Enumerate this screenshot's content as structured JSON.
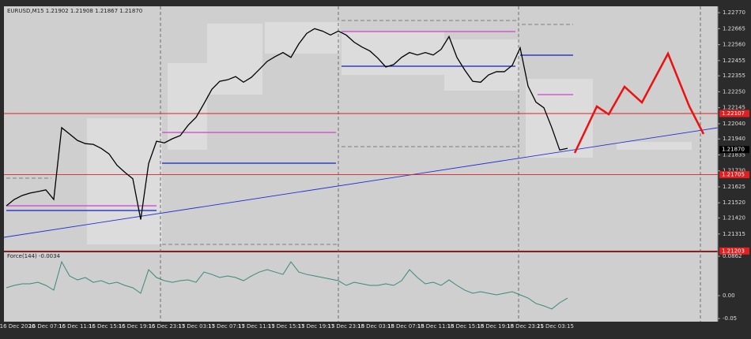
{
  "chart_data": [
    {
      "type": "line",
      "title": "EURUSD,M15  1.21902 1.21908 1.21867 1.21870",
      "color": "#000000",
      "values": [
        1.215,
        1.21542,
        1.21568,
        1.21584,
        1.21594,
        1.21605,
        1.21542,
        1.22014,
        1.21972,
        1.2193,
        1.21909,
        1.21904,
        1.21878,
        1.21841,
        1.21767,
        1.2172,
        1.21678,
        1.2141,
        1.21778,
        1.21925,
        1.21914,
        1.21941,
        1.21962,
        1.2203,
        1.22082,
        1.22172,
        1.22266,
        1.22319,
        1.22329,
        1.2235,
        1.22313,
        1.22345,
        1.22397,
        1.2245,
        1.22481,
        1.22508,
        1.22476,
        1.22565,
        1.22634,
        1.22665,
        1.22649,
        1.22623,
        1.22649,
        1.22623,
        1.22576,
        1.22544,
        1.22518,
        1.22471,
        1.22413,
        1.22429,
        1.22476,
        1.22508,
        1.22492,
        1.22508,
        1.22492,
        1.22529,
        1.22613,
        1.22476,
        1.22392,
        1.22319,
        1.22313,
        1.22361,
        1.22382,
        1.22382,
        1.22424,
        1.22539,
        1.22287,
        1.22182,
        1.22145,
        1.22014,
        1.21867,
        1.21878
      ],
      "ylim": [
        1.21205,
        1.22812
      ],
      "yticks": [
        {
          "value": 1.2277,
          "label": "1.22770"
        },
        {
          "value": 1.22665,
          "label": "1.22665"
        },
        {
          "value": 1.2256,
          "label": "1.22560"
        },
        {
          "value": 1.22455,
          "label": "1.22455"
        },
        {
          "value": 1.22355,
          "label": "1.22355"
        },
        {
          "value": 1.2225,
          "label": "1.22250"
        },
        {
          "value": 1.22145,
          "label": "1.22145"
        },
        {
          "value": 1.2204,
          "label": "1.22040"
        },
        {
          "value": 1.2194,
          "label": "1.21940"
        },
        {
          "value": 1.21835,
          "label": "1.21835"
        },
        {
          "value": 1.2173,
          "label": "1.21730"
        },
        {
          "value": 1.21625,
          "label": "1.21625"
        },
        {
          "value": 1.2152,
          "label": "1.21520"
        },
        {
          "value": 1.2142,
          "label": "1.21420"
        },
        {
          "value": 1.21315,
          "label": "1.21315"
        }
      ],
      "levels": [
        1.22107,
        1.21705,
        1.21203
      ],
      "level_color": "#e02020",
      "current": {
        "value": 1.2187,
        "label": "1.21870"
      },
      "time_labels": [
        "16 Dec 2020",
        "16 Dec 07:15",
        "16 Dec 11:15",
        "16 Dec 15:15",
        "16 Dec 19:15",
        "16 Dec 23:15",
        "17 Dec 03:15",
        "17 Dec 07:15",
        "17 Dec 11:15",
        "17 Dec 15:15",
        "17 Dec 19:15",
        "17 Dec 23:15",
        "18 Dec 03:15",
        "18 Dec 07:15",
        "18 Dec 11:15",
        "18 Dec 15:15",
        "18 Dec 19:15",
        "18 Dec 23:15",
        "21 Dec 03:15"
      ]
    },
    {
      "type": "line",
      "title": "Force(144) -0.0034",
      "color": "#3a8a7a",
      "values": [
        0.0172,
        0.0224,
        0.0258,
        0.0258,
        0.0292,
        0.0224,
        0.012,
        0.074,
        0.043,
        0.0344,
        0.0396,
        0.0292,
        0.0327,
        0.0258,
        0.0292,
        0.0224,
        0.0172,
        0.0052,
        0.0568,
        0.0396,
        0.0327,
        0.0292,
        0.0327,
        0.0344,
        0.0292,
        0.0516,
        0.0464,
        0.0396,
        0.043,
        0.0396,
        0.0327,
        0.043,
        0.0516,
        0.0568,
        0.0516,
        0.0464,
        0.074,
        0.0516,
        0.0464,
        0.043,
        0.0396,
        0.0361,
        0.0327,
        0.0224,
        0.0292,
        0.0258,
        0.0224,
        0.0224,
        0.0258,
        0.0224,
        0.0327,
        0.0568,
        0.0396,
        0.0258,
        0.0292,
        0.0224,
        0.0344,
        0.0224,
        0.012,
        0.0052,
        0.0086,
        0.0052,
        0.0017,
        0.0052,
        0.0086,
        0.0017,
        -0.0052,
        -0.0172,
        -0.0224,
        -0.0292,
        -0.0155,
        -0.0052
      ],
      "ylim": [
        -0.0569,
        0.0948
      ],
      "yticks": [
        0.0862,
        {
          "value": 0,
          "label": "0.00"
        },
        -0.05
      ]
    }
  ]
}
